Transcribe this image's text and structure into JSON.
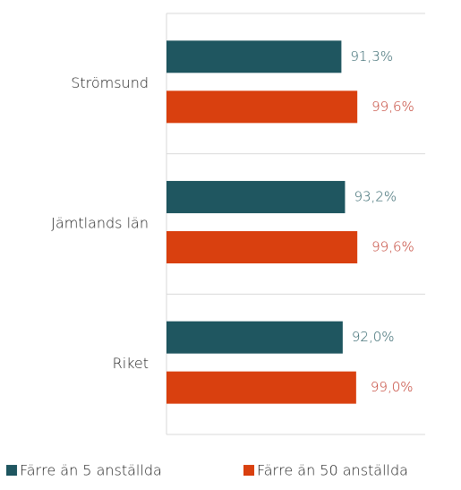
{
  "chart_data": {
    "type": "bar",
    "orientation": "horizontal",
    "categories": [
      "Strömsund",
      "Jämtlands län",
      "Riket"
    ],
    "series": [
      {
        "name": "Färre än 5 anställda",
        "color": "#1f5660",
        "label_color": "#2e6168",
        "values": [
          91.3,
          93.2,
          92.0
        ],
        "value_labels": [
          "91,3%",
          "93,2%",
          "92,0%"
        ]
      },
      {
        "name": "Färre än 50 anställda",
        "color": "#d9400f",
        "label_color": "#c0392b",
        "values": [
          99.6,
          99.6,
          99.0
        ],
        "value_labels": [
          "99,6%",
          "99,6%",
          "99,0%"
        ]
      }
    ],
    "xlim": [
      0,
      100
    ],
    "legend": "bottom"
  }
}
